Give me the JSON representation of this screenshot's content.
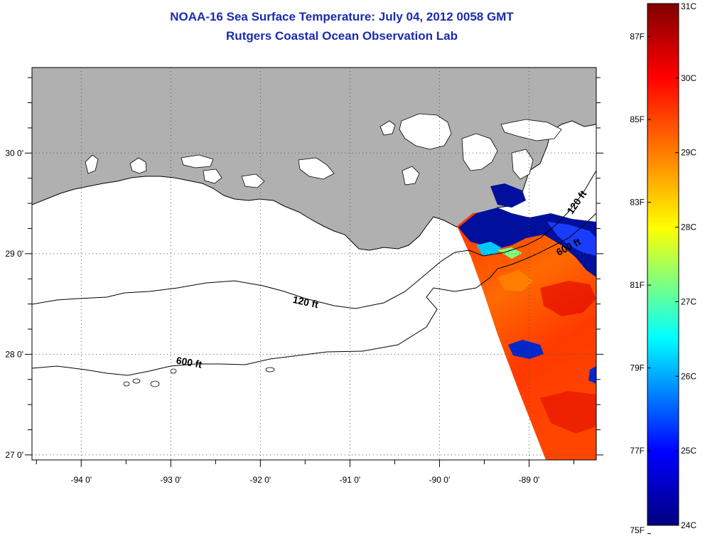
{
  "header": {
    "title": "NOAA-16 Sea Surface Temperature:  July 04, 2012 0058 GMT",
    "subtitle": "Rutgers Coastal Ocean Observation Lab"
  },
  "map": {
    "extent": {
      "lon": [
        -94.55,
        -88.25
      ],
      "lat": [
        26.95,
        30.85
      ]
    },
    "land_color": "#b0b0b0",
    "water_color": "#ffffff",
    "x_ticks": [
      {
        "lon": -94,
        "label": "-94 0'"
      },
      {
        "lon": -93,
        "label": "-93 0'"
      },
      {
        "lon": -92,
        "label": "-92 0'"
      },
      {
        "lon": -91,
        "label": "-91 0'"
      },
      {
        "lon": -90,
        "label": "-90 0'"
      },
      {
        "lon": -89,
        "label": "-89 0'"
      }
    ],
    "y_ticks": [
      {
        "lat": 30,
        "label": "30 0'"
      },
      {
        "lat": 29,
        "label": "29 0'"
      },
      {
        "lat": 28,
        "label": "28 0'"
      },
      {
        "lat": 27,
        "label": "27 0'"
      }
    ],
    "grid": "dotted",
    "contour_labels": [
      {
        "text": "120 ft",
        "lon": -91.5,
        "lat": 28.5,
        "angle": 12
      },
      {
        "text": "600 ft",
        "lon": -92.8,
        "lat": 27.9,
        "angle": 10
      },
      {
        "text": "600 ft",
        "lon": -88.55,
        "lat": 29.05,
        "angle": -28
      },
      {
        "text": "120 ft",
        "lon": -88.45,
        "lat": 29.5,
        "angle": -55
      }
    ]
  },
  "colorbar": {
    "min_c": 24,
    "max_c": 31,
    "colors": [
      "#000080",
      "#0000ff",
      "#00ffff",
      "#ffff00",
      "#ff8000",
      "#ff0000",
      "#800000"
    ],
    "celsius_labels": [
      "31C",
      "30C",
      "29C",
      "28C",
      "27C",
      "26C",
      "25C",
      "24C"
    ],
    "fahrenheit_labels": [
      "87F",
      "85F",
      "83F",
      "81F",
      "79F",
      "77F",
      "75F"
    ]
  }
}
